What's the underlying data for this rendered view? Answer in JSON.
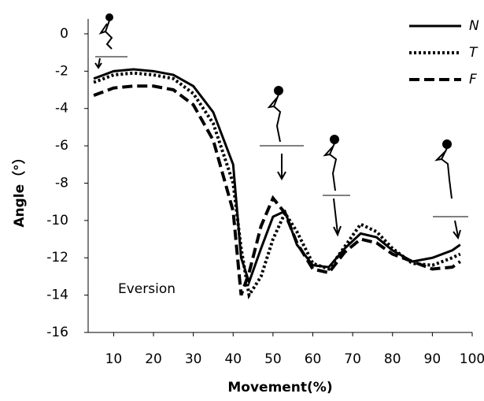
{
  "chart_data": {
    "type": "line",
    "x_label": "Movement(%)",
    "y_label": "Angle（°）",
    "annotation": "Eversion",
    "x": [
      5,
      10,
      15,
      20,
      25,
      30,
      35,
      40,
      42,
      44,
      47,
      50,
      53,
      56,
      60,
      64,
      68,
      72,
      76,
      80,
      85,
      90,
      95,
      97
    ],
    "series": [
      {
        "name": "N",
        "color": "#000000",
        "dash": "solid",
        "values": [
          -2.4,
          -2.0,
          -1.9,
          -2.0,
          -2.2,
          -2.8,
          -4.2,
          -7.0,
          -12.0,
          -13.3,
          -11.5,
          -9.8,
          -9.5,
          -11.3,
          -12.4,
          -12.5,
          -11.5,
          -10.7,
          -10.9,
          -11.6,
          -12.2,
          -12.0,
          -11.6,
          -11.3
        ]
      },
      {
        "name": "T",
        "color": "#000000",
        "dash": "dotted",
        "values": [
          -2.6,
          -2.2,
          -2.1,
          -2.2,
          -2.4,
          -3.2,
          -4.8,
          -8.0,
          -11.5,
          -14.0,
          -13.0,
          -11.0,
          -9.6,
          -10.6,
          -12.3,
          -12.6,
          -11.4,
          -10.2,
          -10.6,
          -11.5,
          -12.3,
          -12.4,
          -12.0,
          -11.8
        ]
      },
      {
        "name": "F",
        "color": "#000000",
        "dash": "dashed",
        "values": [
          -3.3,
          -2.9,
          -2.8,
          -2.8,
          -3.0,
          -3.8,
          -5.7,
          -9.5,
          -14.0,
          -12.8,
          -10.3,
          -8.8,
          -9.6,
          -11.2,
          -12.6,
          -12.8,
          -11.7,
          -11.0,
          -11.2,
          -11.8,
          -12.2,
          -12.6,
          -12.5,
          -12.2
        ]
      }
    ],
    "xlim": [
      3.6,
      100
    ],
    "xticks": [
      10,
      20,
      30,
      40,
      50,
      60,
      70,
      80,
      90,
      100
    ],
    "ylim": [
      -16,
      0.8
    ],
    "yticks": [
      0,
      -2,
      -4,
      -6,
      -8,
      -10,
      -12,
      -14,
      -16
    ],
    "legend": "upper right"
  }
}
